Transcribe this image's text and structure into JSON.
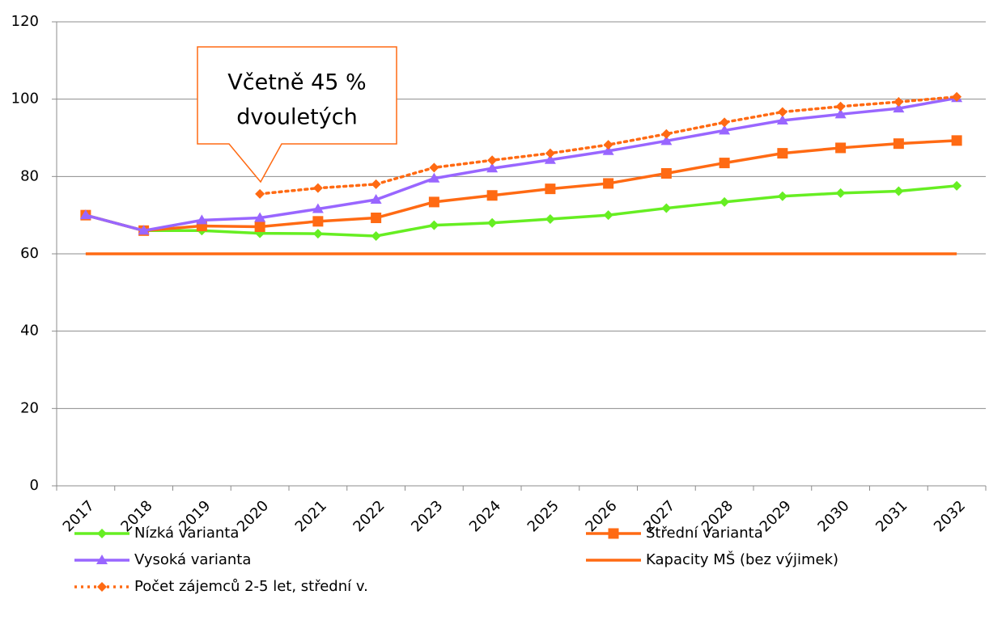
{
  "chart_data": {
    "type": "line",
    "annotation": [
      "Včetně 45 %",
      "dvouletých"
    ],
    "categories": [
      "2017",
      "2018",
      "2019",
      "2020",
      "2021",
      "2022",
      "2023",
      "2024",
      "2025",
      "2026",
      "2027",
      "2028",
      "2029",
      "2030",
      "2031",
      "2032"
    ],
    "ylim": [
      0,
      120
    ],
    "yticks": [
      0,
      20,
      40,
      60,
      80,
      100,
      120
    ],
    "grid": true,
    "series": [
      {
        "name": "Nízká varianta",
        "color": "#66ee22",
        "marker": "diamond",
        "line_style": "solid",
        "values": [
          70,
          66,
          66,
          65.3,
          65.2,
          64.6,
          67.4,
          68,
          69,
          70,
          71.8,
          73.4,
          74.9,
          75.7,
          76.2,
          77.6
        ]
      },
      {
        "name": "Střední varianta",
        "color": "#ff6a13",
        "marker": "square",
        "line_style": "solid",
        "values": [
          70,
          66,
          67.2,
          67,
          68.4,
          69.3,
          73.4,
          75.1,
          76.8,
          78.2,
          80.8,
          83.5,
          86,
          87.4,
          88.5,
          89.3
        ]
      },
      {
        "name": "Vysoká varianta",
        "color": "#9966ff",
        "marker": "triangle",
        "line_style": "solid",
        "values": [
          70,
          66,
          68.7,
          69.3,
          71.6,
          74,
          79.5,
          82.1,
          84.3,
          86.6,
          89.2,
          91.9,
          94.5,
          96.1,
          97.6,
          100.3
        ]
      },
      {
        "name": "Kapacity MŠ (bez výjimek)",
        "color": "#ff6a13",
        "marker": "none",
        "line_style": "solid",
        "values": [
          60,
          60,
          60,
          60,
          60,
          60,
          60,
          60,
          60,
          60,
          60,
          60,
          60,
          60,
          60,
          60
        ]
      },
      {
        "name": "Počet zájemců 2-5 let, střední v.",
        "color": "#ff6a13",
        "marker": "diamond",
        "line_style": "dotted",
        "values": [
          null,
          null,
          null,
          75.5,
          77,
          78,
          82.3,
          84.2,
          86,
          88.2,
          91,
          94,
          96.7,
          98.1,
          99.3,
          100.6
        ]
      }
    ]
  }
}
